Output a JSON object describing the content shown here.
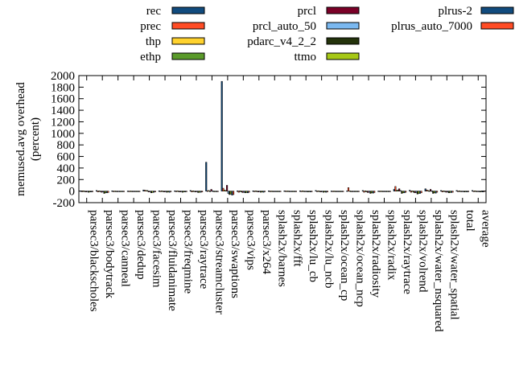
{
  "chart_data": {
    "type": "bar",
    "ylabel_lines": [
      "memused.avg overhead",
      "(percent)"
    ],
    "ylim": [
      -200,
      2000
    ],
    "yticks": [
      -200,
      0,
      200,
      400,
      600,
      800,
      1000,
      1200,
      1400,
      1600,
      1800,
      2000
    ],
    "grid": false,
    "legend_position": "top",
    "categories": [
      "parsec3/blackscholes",
      "parsec3/bodytrack",
      "parsec3/canneal",
      "parsec3/dedup",
      "parsec3/facesim",
      "parsec3/fluidanimate",
      "parsec3/freqmine",
      "parsec3/raytrace",
      "parsec3/streamcluster",
      "parsec3/swaptions",
      "parsec3/vips",
      "parsec3/x264",
      "splash2x/barnes",
      "splash2x/fft",
      "splash2x/lu_cb",
      "splash2x/lu_ncb",
      "splash2x/ocean_cp",
      "splash2x/ocean_ncp",
      "splash2x/radiosity",
      "splash2x/radix",
      "splash2x/raytrace",
      "splash2x/volrend",
      "splash2x/water_nsquared",
      "splash2x/water_spatial",
      "total",
      "average"
    ],
    "series": [
      {
        "name": "rec",
        "color": "#114b7e",
        "values": [
          5,
          10,
          5,
          2,
          20,
          5,
          5,
          10,
          500,
          1900,
          5,
          5,
          5,
          5,
          5,
          10,
          2,
          5,
          10,
          2,
          30,
          15,
          40,
          10,
          10,
          10
        ]
      },
      {
        "name": "prec",
        "color": "#ff4c25",
        "values": [
          -10,
          -15,
          -5,
          -2,
          15,
          -10,
          -10,
          -15,
          5,
          50,
          -20,
          -10,
          -5,
          2,
          -5,
          -10,
          -2,
          60,
          -20,
          -2,
          80,
          -20,
          20,
          -15,
          -5,
          -5
        ]
      },
      {
        "name": "thp",
        "color": "#ffd22e",
        "values": [
          5,
          5,
          2,
          2,
          10,
          5,
          5,
          5,
          10,
          20,
          5,
          5,
          2,
          2,
          5,
          5,
          2,
          5,
          5,
          2,
          10,
          5,
          10,
          5,
          5,
          5
        ]
      },
      {
        "name": "ethp",
        "color": "#5a9a2a",
        "values": [
          -5,
          -10,
          -5,
          -2,
          10,
          -10,
          -5,
          -10,
          -5,
          10,
          -15,
          -10,
          -5,
          2,
          -5,
          -10,
          -2,
          -2,
          -15,
          -2,
          20,
          -20,
          5,
          -10,
          -5,
          -5
        ]
      },
      {
        "name": "prcl",
        "color": "#7a0027",
        "values": [
          -15,
          -20,
          -10,
          -5,
          -15,
          -15,
          -15,
          -15,
          30,
          100,
          -25,
          -15,
          -10,
          -5,
          -10,
          -15,
          -5,
          -5,
          -25,
          -5,
          40,
          -30,
          30,
          -20,
          -10,
          -10
        ]
      },
      {
        "name": "prcl_auto_50",
        "color": "#7ab8f0",
        "values": [
          -10,
          -15,
          -5,
          -2,
          -10,
          -10,
          -10,
          -10,
          5,
          -40,
          -20,
          -10,
          -5,
          -2,
          -5,
          -10,
          -2,
          -2,
          -20,
          -2,
          10,
          -25,
          5,
          -15,
          -5,
          -5
        ]
      },
      {
        "name": "pdarc_v4_2_2",
        "color": "#24330b",
        "values": [
          -20,
          -40,
          -10,
          -5,
          -30,
          -20,
          -20,
          -25,
          -10,
          -60,
          -30,
          -20,
          -10,
          -5,
          -15,
          -20,
          -5,
          -10,
          -40,
          -5,
          -40,
          -50,
          -40,
          -30,
          -15,
          -15
        ]
      },
      {
        "name": "ttmo",
        "color": "#a6c815",
        "values": [
          -15,
          -30,
          -5,
          -5,
          -25,
          -15,
          -15,
          -20,
          -5,
          -50,
          -25,
          -15,
          -10,
          -5,
          -10,
          -15,
          -5,
          -5,
          -30,
          -5,
          -30,
          -40,
          -30,
          -25,
          -10,
          -10
        ]
      },
      {
        "name": "plrus-2",
        "color": "#114b7e",
        "values": [
          -15,
          -30,
          -10,
          -5,
          -20,
          -20,
          -15,
          -20,
          -10,
          -70,
          -30,
          -20,
          -10,
          -5,
          -15,
          -20,
          -5,
          -10,
          -35,
          -5,
          -30,
          -40,
          -35,
          -25,
          -15,
          -15
        ]
      },
      {
        "name": "plrus_auto_7000",
        "color": "#ff4c25",
        "values": [
          -10,
          -25,
          -5,
          -2,
          -15,
          -10,
          -10,
          -15,
          -5,
          -60,
          -20,
          -10,
          -5,
          -2,
          -10,
          -15,
          -2,
          -5,
          -25,
          -2,
          -20,
          -30,
          -20,
          -20,
          -10,
          -10
        ]
      }
    ]
  }
}
